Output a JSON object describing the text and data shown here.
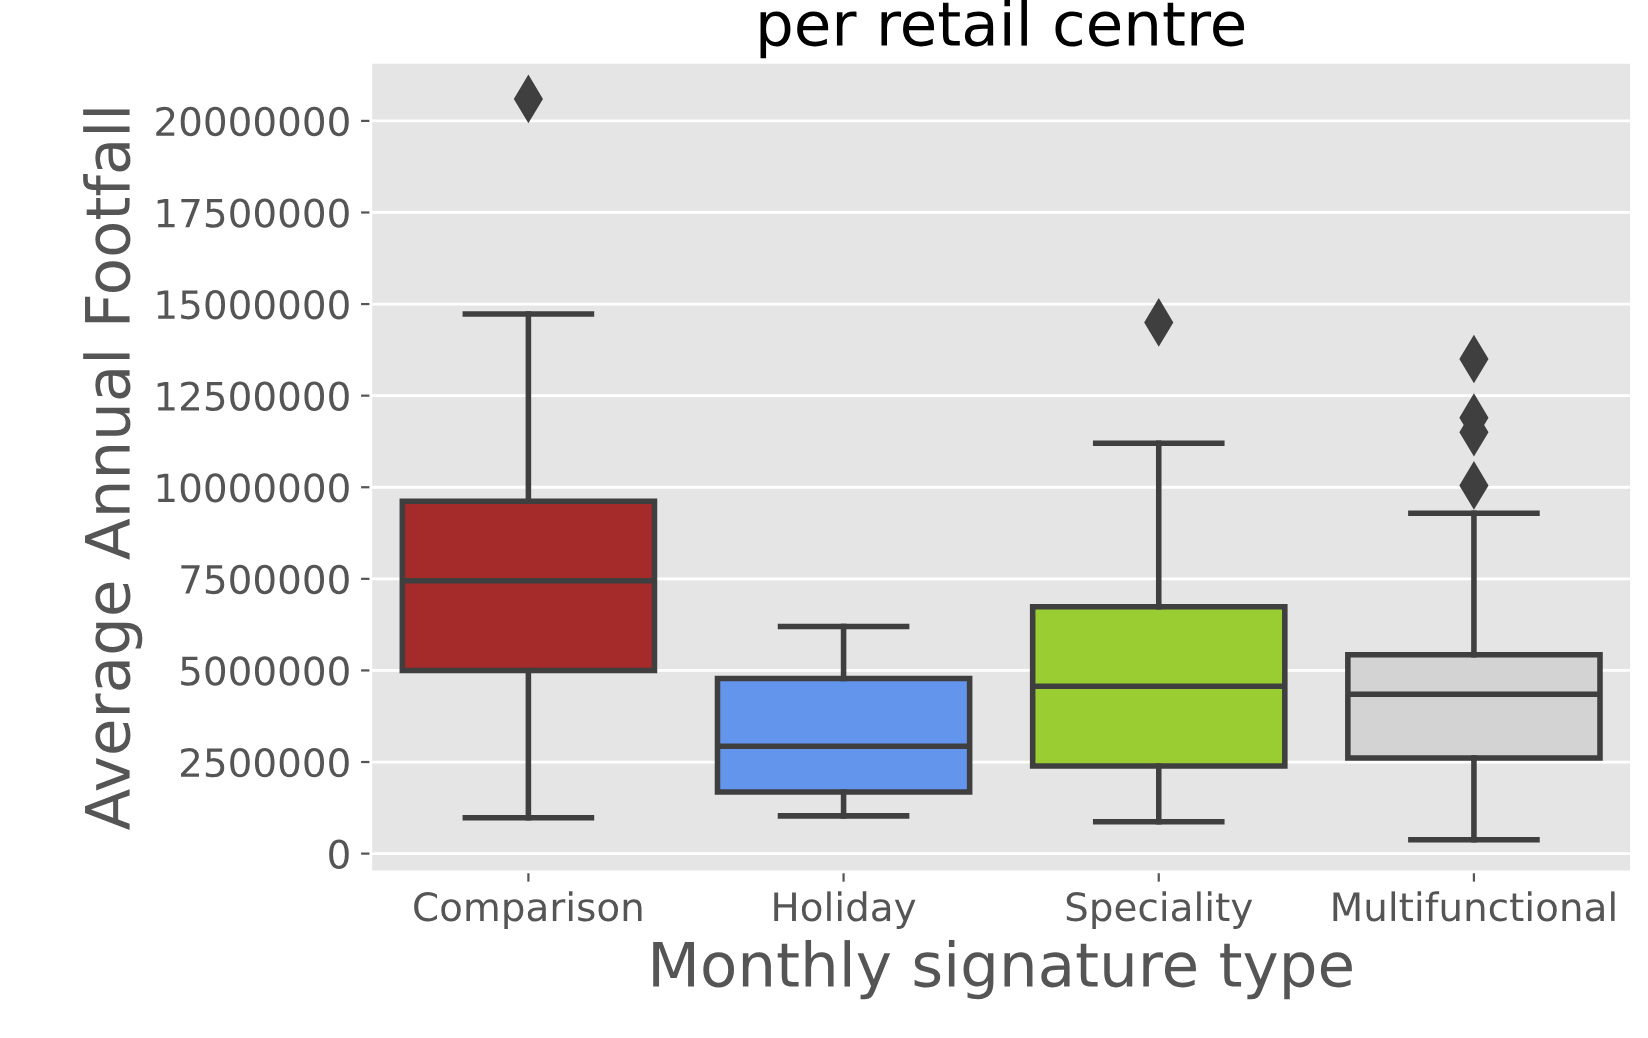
{
  "chart_data": {
    "type": "box",
    "title": "per retail centre",
    "xlabel": "Monthly signature type",
    "ylabel": "Average Annual Footfall",
    "categories": [
      "Comparison",
      "Holiday",
      "Speciality",
      "Multifunctional"
    ],
    "colors": [
      "#a52a2a",
      "#6495ed",
      "#9acd32",
      "#d3d3d3"
    ],
    "boxes": [
      {
        "low": 980000,
        "q1": 5000000,
        "median": 7450000,
        "q3": 9620000,
        "high": 14730000,
        "outliers": [
          20600000
        ]
      },
      {
        "low": 1030000,
        "q1": 1680000,
        "median": 2930000,
        "q3": 4780000,
        "high": 6200000
      },
      {
        "low": 870000,
        "q1": 2390000,
        "median": 4570000,
        "q3": 6740000,
        "high": 11200000,
        "outliers": [
          14500000
        ]
      },
      {
        "low": 380000,
        "q1": 2610000,
        "median": 4350000,
        "q3": 5430000,
        "high": 9290000,
        "outliers": [
          13500000,
          11900000,
          11500000,
          10050000
        ]
      }
    ],
    "ylim": [
      -500000,
      21600000
    ],
    "yticks": [
      0,
      2500000,
      5000000,
      7500000,
      10000000,
      12500000,
      15000000,
      17500000,
      20000000
    ],
    "grid": "y"
  }
}
